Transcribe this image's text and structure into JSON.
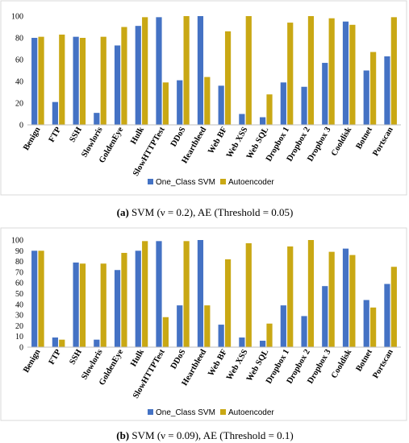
{
  "chart_data": [
    {
      "type": "bar",
      "panel": "a",
      "categories": [
        "Benign",
        "FTP",
        "SSH",
        "Slowloris",
        "GoldenEye",
        "Hulk",
        "SlowHTTPTest",
        "DDoS",
        "Heartbleed",
        "Web BF",
        "Web XSS",
        "Web SQL",
        "Dropbox 1",
        "Dropbox 2",
        "Dropbox 3",
        "Cooldisk",
        "Botnet",
        "Portscan"
      ],
      "series": [
        {
          "name": "One_Class SVM",
          "color": "#4472c4",
          "values": [
            80,
            21,
            81,
            11,
            73,
            91,
            99,
            41,
            100,
            36,
            10,
            7,
            39,
            35,
            57,
            95,
            50,
            63
          ]
        },
        {
          "name": "Autoencoder",
          "color": "#c9a814",
          "values": [
            81,
            83,
            80,
            81,
            90,
            99,
            39,
            100,
            44,
            86,
            100,
            28,
            94,
            100,
            98,
            92,
            67,
            99
          ]
        }
      ],
      "ylim": [
        0,
        100
      ],
      "yticks": [
        0,
        20,
        40,
        60,
        80,
        100
      ],
      "caption_prefix": "(a)",
      "caption_text": " SVM (ν = 0.2), AE (Threshold = 0.05)",
      "legend_position": "bottom"
    },
    {
      "type": "bar",
      "panel": "b",
      "categories": [
        "Benign",
        "FTP",
        "SSH",
        "Slowloris",
        "GoldenEye",
        "Hulk",
        "SlowHTTPTest",
        "DDoS",
        "Heartbleed",
        "Web BF",
        "Web XSS",
        "Web SQL",
        "Dropbox 1",
        "Dropbox 2",
        "Dropbox 3",
        "Cooldisk",
        "Botnet",
        "Portscan"
      ],
      "series": [
        {
          "name": "One_Class SVM",
          "color": "#4472c4",
          "values": [
            90,
            9,
            79,
            7,
            72,
            90,
            99,
            39,
            100,
            21,
            9,
            6,
            39,
            29,
            57,
            92,
            44,
            59
          ]
        },
        {
          "name": "Autoencoder",
          "color": "#c9a814",
          "values": [
            90,
            7,
            78,
            78,
            88,
            99,
            28,
            99,
            39,
            82,
            97,
            22,
            94,
            100,
            89,
            86,
            37,
            75
          ]
        }
      ],
      "ylim": [
        0,
        100
      ],
      "yticks": [
        0,
        10,
        20,
        30,
        40,
        50,
        60,
        70,
        80,
        90,
        100
      ],
      "caption_prefix": "(b)",
      "caption_text": " SVM (ν = 0.09), AE (Threshold = 0.1)",
      "legend_position": "bottom"
    }
  ]
}
